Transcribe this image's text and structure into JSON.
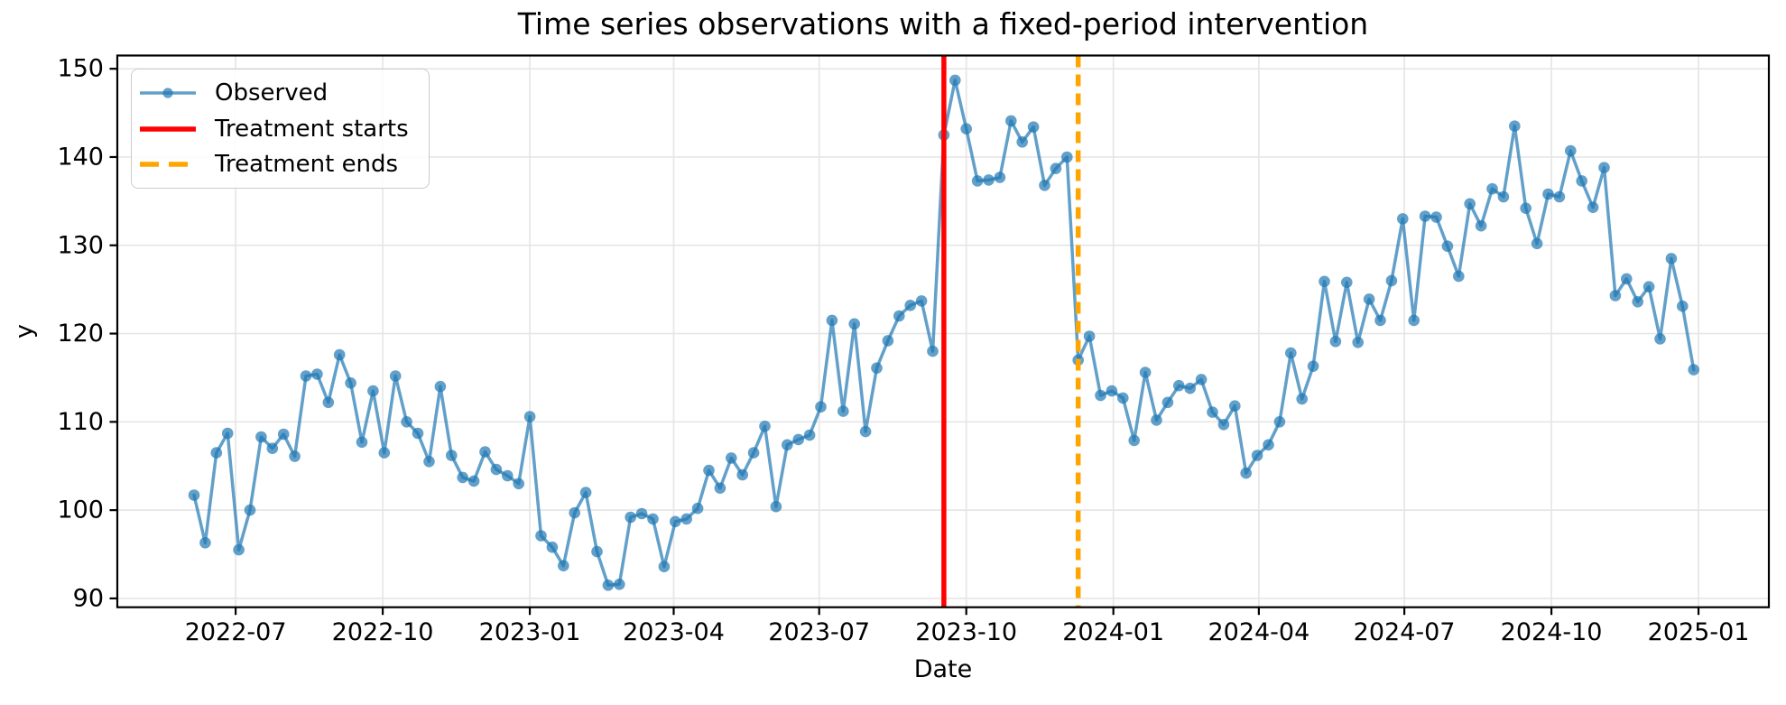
{
  "legend": {
    "entries": [
      {
        "label": "Observed",
        "type": "line-marker",
        "color": "#1f77b4",
        "alpha": 0.7
      },
      {
        "label": "Treatment starts",
        "type": "solid",
        "color": "#ff0000",
        "alpha": 1
      },
      {
        "label": "Treatment ends",
        "type": "dashed",
        "color": "#ffa500",
        "alpha": 1
      }
    ]
  },
  "chart_data": {
    "type": "line",
    "title": "Time series observations with a fixed-period intervention",
    "xlabel": "Date",
    "ylabel": "y",
    "grid": true,
    "legend_position": "upper-left",
    "xlim": [
      "2022-04-18",
      "2025-02-14"
    ],
    "ylim": [
      89.0,
      151.5
    ],
    "yticks": [
      90,
      100,
      110,
      120,
      130,
      140,
      150
    ],
    "xticks": [
      {
        "label": "2022-07",
        "date": "2022-07-01"
      },
      {
        "label": "2022-10",
        "date": "2022-10-01"
      },
      {
        "label": "2023-01",
        "date": "2023-01-01"
      },
      {
        "label": "2023-04",
        "date": "2023-04-01"
      },
      {
        "label": "2023-07",
        "date": "2023-07-01"
      },
      {
        "label": "2023-10",
        "date": "2023-10-01"
      },
      {
        "label": "2024-01",
        "date": "2024-01-01"
      },
      {
        "label": "2024-04",
        "date": "2024-04-01"
      },
      {
        "label": "2024-07",
        "date": "2024-07-01"
      },
      {
        "label": "2024-10",
        "date": "2024-10-01"
      },
      {
        "label": "2025-01",
        "date": "2025-01-01"
      }
    ],
    "series": [
      {
        "name": "Observed",
        "color": "#1f77b4",
        "alpha": 0.7,
        "marker": "circle",
        "x_start": "2022-06-05",
        "x_freq_days": 7,
        "values": [
          101.7,
          96.3,
          106.5,
          108.7,
          95.5,
          100.0,
          108.3,
          107.0,
          108.6,
          106.1,
          115.2,
          115.4,
          112.2,
          117.6,
          114.4,
          107.7,
          113.5,
          106.5,
          115.2,
          110.0,
          108.7,
          105.5,
          114.0,
          106.2,
          103.7,
          103.3,
          106.6,
          104.6,
          103.9,
          103.0,
          110.6,
          97.1,
          95.8,
          93.7,
          99.7,
          102.0,
          95.3,
          91.5,
          91.6,
          99.2,
          99.6,
          99.0,
          93.6,
          98.7,
          99.0,
          100.2,
          104.5,
          102.5,
          105.9,
          104.0,
          106.5,
          109.5,
          100.4,
          107.4,
          108.0,
          108.5,
          111.7,
          121.5,
          111.2,
          121.1,
          108.9,
          116.1,
          119.2,
          122.0,
          123.2,
          123.7,
          118.0,
          142.5,
          148.7,
          143.2,
          137.3,
          137.4,
          137.7,
          144.1,
          141.7,
          143.4,
          136.8,
          138.7,
          140.0,
          117.0,
          119.7,
          113.0,
          113.5,
          112.7,
          107.9,
          115.6,
          110.2,
          112.2,
          114.1,
          113.8,
          114.8,
          111.1,
          109.7,
          111.8,
          104.2,
          106.2,
          107.4,
          110.0,
          117.8,
          112.6,
          116.3,
          125.9,
          119.1,
          125.8,
          119.0,
          123.9,
          121.5,
          126.0,
          133.0,
          121.5,
          133.3,
          133.2,
          129.9,
          126.5,
          134.7,
          132.2,
          136.4,
          135.5,
          143.5,
          134.2,
          130.2,
          135.8,
          135.5,
          140.7,
          137.3,
          134.3,
          138.8,
          124.3,
          126.2,
          123.6,
          125.3,
          119.4,
          128.5,
          123.1,
          115.9
        ]
      }
    ],
    "vlines": [
      {
        "label": "Treatment starts",
        "date": "2023-09-17",
        "color": "#ff0000",
        "style": "solid"
      },
      {
        "label": "Treatment ends",
        "date": "2023-12-10",
        "color": "#ffa500",
        "style": "dashed"
      }
    ]
  }
}
